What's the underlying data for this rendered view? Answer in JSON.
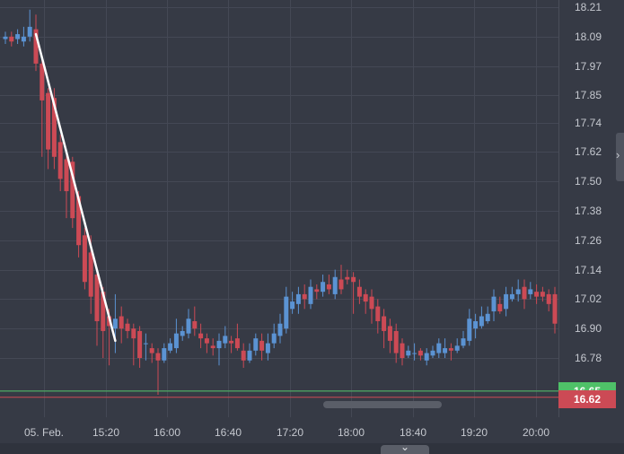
{
  "colors": {
    "background": "#363a45",
    "grid": "#444855",
    "up": "#5b93d3",
    "down": "#cc4a55",
    "trend_line": "#ffffff",
    "green_line": "#4fc168",
    "red_line": "#cc4a55"
  },
  "icons": {
    "side_handle": "chevron-right-icon",
    "bottom_toggle": "chevron-down-icon"
  },
  "price_badges": {
    "upper": "16.65",
    "current": "16.62"
  },
  "chart_data": {
    "type": "candlestick",
    "title": "",
    "xlabel": "",
    "ylabel": "",
    "ylim": [
      16.56,
      18.25
    ],
    "yticks": [
      "18.21",
      "18.09",
      "17.97",
      "17.85",
      "17.74",
      "17.62",
      "17.50",
      "17.38",
      "17.26",
      "17.14",
      "17.02",
      "16.90",
      "16.78",
      "16.65"
    ],
    "xticks": [
      "05. Feb.",
      "15:20",
      "16:00",
      "16:40",
      "17:20",
      "18:00",
      "18:40",
      "19:20",
      "20:00"
    ],
    "grid": true,
    "reference_lines": [
      16.645,
      16.62
    ],
    "trend_line": {
      "from_candle": 5,
      "from_price": 18.1,
      "to_candle": 18,
      "to_price": 16.85
    },
    "candles": [
      [
        18.08,
        18.09,
        18.11,
        18.06
      ],
      [
        18.09,
        18.07,
        18.11,
        18.05
      ],
      [
        18.08,
        18.1,
        18.12,
        18.06
      ],
      [
        18.07,
        18.09,
        18.13,
        18.05
      ],
      [
        18.09,
        18.13,
        18.2,
        18.07
      ],
      [
        18.12,
        17.98,
        18.18,
        17.95
      ],
      [
        17.98,
        17.83,
        18.0,
        17.6
      ],
      [
        17.86,
        17.63,
        17.88,
        17.55
      ],
      [
        17.84,
        17.6,
        17.88,
        17.55
      ],
      [
        17.66,
        17.51,
        17.69,
        17.46
      ],
      [
        17.59,
        17.46,
        17.63,
        17.35
      ],
      [
        17.58,
        17.35,
        17.6,
        17.31
      ],
      [
        17.44,
        17.24,
        17.46,
        17.19
      ],
      [
        17.28,
        17.09,
        17.31,
        17.06
      ],
      [
        17.21,
        17.03,
        17.28,
        16.96
      ],
      [
        17.12,
        16.93,
        17.14,
        16.83
      ],
      [
        17.05,
        16.89,
        17.07,
        16.78
      ],
      [
        16.95,
        16.91,
        16.98,
        16.75
      ],
      [
        16.9,
        16.94,
        17.04,
        16.8
      ],
      [
        16.95,
        16.9,
        16.99,
        16.84
      ],
      [
        16.92,
        16.89,
        16.94,
        16.86
      ],
      [
        16.9,
        16.86,
        16.92,
        16.75
      ],
      [
        16.89,
        16.78,
        16.91,
        16.74
      ],
      [
        16.84,
        16.84,
        16.88,
        16.77
      ],
      [
        16.82,
        16.8,
        16.84,
        16.76
      ],
      [
        16.8,
        16.77,
        16.82,
        16.63
      ],
      [
        16.77,
        16.82,
        16.84,
        16.76
      ],
      [
        16.81,
        16.84,
        16.86,
        16.8
      ],
      [
        16.82,
        16.88,
        16.94,
        16.8
      ],
      [
        16.87,
        16.89,
        16.91,
        16.85
      ],
      [
        16.88,
        16.94,
        16.98,
        16.86
      ],
      [
        16.93,
        16.9,
        16.99,
        16.87
      ],
      [
        16.88,
        16.86,
        16.92,
        16.82
      ],
      [
        16.86,
        16.84,
        16.88,
        16.8
      ],
      [
        16.83,
        16.82,
        16.86,
        16.79
      ],
      [
        16.82,
        16.85,
        16.88,
        16.75
      ],
      [
        16.84,
        16.87,
        16.91,
        16.82
      ],
      [
        16.85,
        16.84,
        16.87,
        16.8
      ],
      [
        16.86,
        16.82,
        16.92,
        16.81
      ],
      [
        16.81,
        16.77,
        16.84,
        16.74
      ],
      [
        16.77,
        16.81,
        16.84,
        16.76
      ],
      [
        16.81,
        16.86,
        16.88,
        16.79
      ],
      [
        16.85,
        16.81,
        16.88,
        16.77
      ],
      [
        16.8,
        16.84,
        16.88,
        16.77
      ],
      [
        16.84,
        16.88,
        16.92,
        16.82
      ],
      [
        16.87,
        16.92,
        16.96,
        16.84
      ],
      [
        16.9,
        17.03,
        17.07,
        16.88
      ],
      [
        16.98,
        17.01,
        17.05,
        16.96
      ],
      [
        17.0,
        17.04,
        17.07,
        16.96
      ],
      [
        17.04,
        17.02,
        17.08,
        16.98
      ],
      [
        17.0,
        17.07,
        17.1,
        16.98
      ],
      [
        17.06,
        17.05,
        17.08,
        17.02
      ],
      [
        17.05,
        17.09,
        17.12,
        17.03
      ],
      [
        17.08,
        17.06,
        17.12,
        17.04
      ],
      [
        17.04,
        17.11,
        17.14,
        17.02
      ],
      [
        17.1,
        17.06,
        17.16,
        17.04
      ],
      [
        17.11,
        17.1,
        17.14,
        17.08
      ],
      [
        17.11,
        17.09,
        17.13,
        16.96
      ],
      [
        17.07,
        17.03,
        17.1,
        17.0
      ],
      [
        17.04,
        17.01,
        17.06,
        16.96
      ],
      [
        17.03,
        16.98,
        17.06,
        16.92
      ],
      [
        16.99,
        16.93,
        17.02,
        16.88
      ],
      [
        16.95,
        16.89,
        16.98,
        16.82
      ],
      [
        16.91,
        16.85,
        16.94,
        16.8
      ],
      [
        16.89,
        16.8,
        16.92,
        16.76
      ],
      [
        16.84,
        16.78,
        16.86,
        16.75
      ],
      [
        16.79,
        16.81,
        16.83,
        16.78
      ],
      [
        16.8,
        16.8,
        16.84,
        16.77
      ],
      [
        16.81,
        16.79,
        16.82,
        16.77
      ],
      [
        16.77,
        16.8,
        16.82,
        16.75
      ],
      [
        16.79,
        16.81,
        16.83,
        16.78
      ],
      [
        16.8,
        16.84,
        16.86,
        16.78
      ],
      [
        16.8,
        16.82,
        16.86,
        16.78
      ],
      [
        16.82,
        16.81,
        16.84,
        16.77
      ],
      [
        16.81,
        16.83,
        16.86,
        16.8
      ],
      [
        16.83,
        16.86,
        16.89,
        16.82
      ],
      [
        16.85,
        16.94,
        16.98,
        16.83
      ],
      [
        16.9,
        16.93,
        16.96,
        16.86
      ],
      [
        16.91,
        16.95,
        16.99,
        16.9
      ],
      [
        16.93,
        16.96,
        16.99,
        16.92
      ],
      [
        16.97,
        17.03,
        17.06,
        16.93
      ],
      [
        17.0,
        16.97,
        17.03,
        16.96
      ],
      [
        16.98,
        17.04,
        17.07,
        16.95
      ],
      [
        17.02,
        17.04,
        17.07,
        17.01
      ],
      [
        17.04,
        17.06,
        17.1,
        17.01
      ],
      [
        17.07,
        17.02,
        17.1,
        16.98
      ],
      [
        17.04,
        17.06,
        17.09,
        17.02
      ],
      [
        17.05,
        17.03,
        17.08,
        17.0
      ],
      [
        17.05,
        17.03,
        17.07,
        17.01
      ],
      [
        17.04,
        17.0,
        17.06,
        16.97
      ],
      [
        17.04,
        16.92,
        17.07,
        16.88
      ],
      [
        16.95,
        16.82,
        16.98,
        16.78
      ],
      [
        16.88,
        16.76,
        16.9,
        16.72
      ],
      [
        16.78,
        16.71,
        16.8,
        16.68
      ]
    ]
  }
}
